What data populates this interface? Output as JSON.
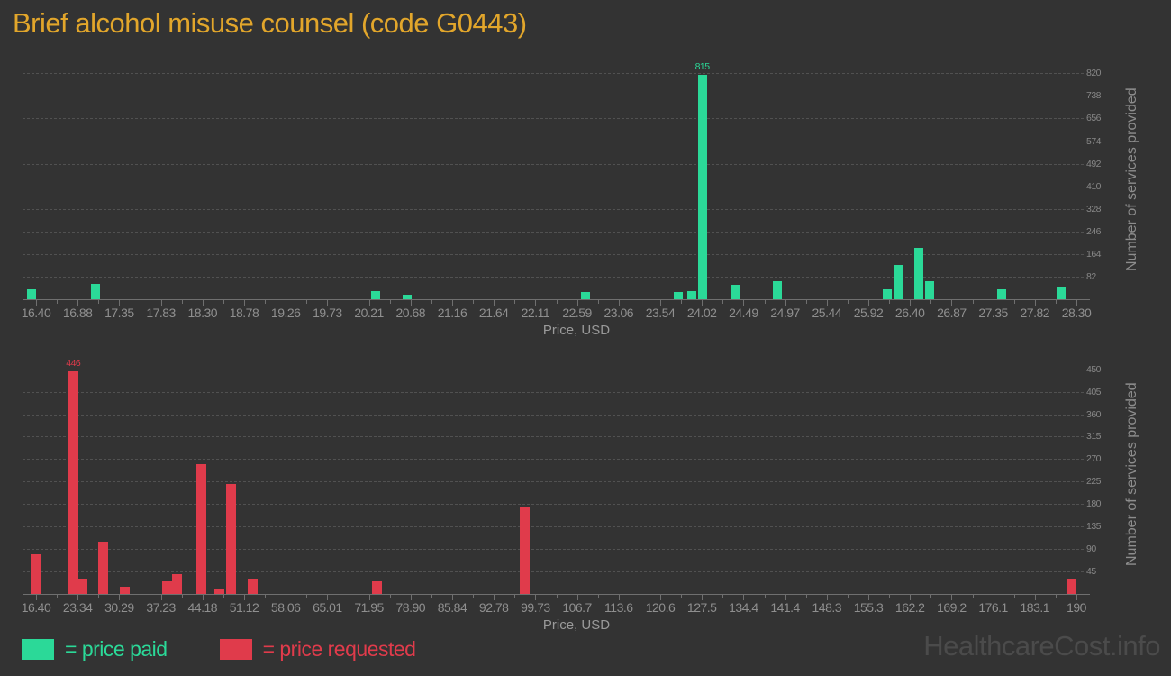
{
  "title": "Brief alcohol misuse counsel (code G0443)",
  "watermark": "HealthcareCost.info",
  "colors": {
    "background": "#333333",
    "title": "#e2a62b",
    "paid": "#2bd998",
    "requested": "#e03b4b",
    "axis_text": "#8f8f8f",
    "grid_line": "#515151",
    "watermark": "#4b4b4b"
  },
  "legend": {
    "items": [
      {
        "label": "= price paid",
        "series": "paid"
      },
      {
        "label": "= price requested",
        "series": "requested"
      }
    ]
  },
  "chart_data": [
    {
      "type": "bar",
      "name": "price-paid",
      "series_label": "price paid",
      "color": "#2bd998",
      "xlabel": "Price, USD",
      "ylabel": "Number of services provided",
      "x_range": [
        16.4,
        28.3
      ],
      "x_tick_labels": [
        "16.40",
        "16.88",
        "17.35",
        "17.83",
        "18.30",
        "18.78",
        "19.26",
        "19.73",
        "20.21",
        "20.68",
        "21.16",
        "21.64",
        "22.11",
        "22.59",
        "23.06",
        "23.54",
        "24.02",
        "24.49",
        "24.97",
        "25.44",
        "25.92",
        "26.40",
        "26.87",
        "27.35",
        "27.82",
        "28.30"
      ],
      "y_ticks": [
        82,
        164,
        246,
        328,
        410,
        492,
        574,
        656,
        738,
        820
      ],
      "ylim": [
        0,
        870
      ],
      "grid": true,
      "legend_position": "bottom",
      "bars": [
        {
          "price": 16.35,
          "count": 35
        },
        {
          "price": 17.08,
          "count": 55
        },
        {
          "price": 20.28,
          "count": 30
        },
        {
          "price": 20.64,
          "count": 16
        },
        {
          "price": 22.68,
          "count": 25
        },
        {
          "price": 23.75,
          "count": 25
        },
        {
          "price": 23.9,
          "count": 28
        },
        {
          "price": 24.02,
          "count": 815
        },
        {
          "price": 24.4,
          "count": 52
        },
        {
          "price": 24.88,
          "count": 65
        },
        {
          "price": 26.14,
          "count": 36
        },
        {
          "price": 26.26,
          "count": 125
        },
        {
          "price": 26.5,
          "count": 185
        },
        {
          "price": 26.62,
          "count": 65
        },
        {
          "price": 27.44,
          "count": 35
        },
        {
          "price": 28.12,
          "count": 45
        }
      ],
      "annotation": {
        "price": 24.02,
        "value": 815,
        "text": "815"
      }
    },
    {
      "type": "bar",
      "name": "price-requested",
      "series_label": "price requested",
      "color": "#e03b4b",
      "xlabel": "Price, USD",
      "ylabel": "Number of services provided",
      "x_range": [
        16.4,
        190
      ],
      "x_tick_labels": [
        "16.40",
        "23.34",
        "30.29",
        "37.23",
        "44.18",
        "51.12",
        "58.06",
        "65.01",
        "71.95",
        "78.90",
        "85.84",
        "92.78",
        "99.73",
        "106.7",
        "113.6",
        "120.6",
        "127.5",
        "134.4",
        "141.4",
        "148.3",
        "155.3",
        "162.2",
        "169.2",
        "176.1",
        "183.1",
        "190"
      ],
      "y_ticks": [
        45,
        90,
        135,
        180,
        225,
        270,
        315,
        360,
        405,
        450
      ],
      "ylim": [
        0,
        480
      ],
      "grid": true,
      "legend_position": "bottom",
      "bars": [
        {
          "price": 16.35,
          "count": 80
        },
        {
          "price": 22.6,
          "count": 446
        },
        {
          "price": 24.2,
          "count": 30
        },
        {
          "price": 27.6,
          "count": 105
        },
        {
          "price": 31.2,
          "count": 15
        },
        {
          "price": 38.3,
          "count": 25
        },
        {
          "price": 39.95,
          "count": 40
        },
        {
          "price": 43.95,
          "count": 260
        },
        {
          "price": 47.0,
          "count": 10
        },
        {
          "price": 48.95,
          "count": 220
        },
        {
          "price": 52.55,
          "count": 30
        },
        {
          "price": 73.3,
          "count": 25
        },
        {
          "price": 98.0,
          "count": 175
        },
        {
          "price": 189.2,
          "count": 30
        }
      ],
      "annotation": {
        "price": 22.6,
        "value": 446,
        "text": "446"
      }
    }
  ]
}
